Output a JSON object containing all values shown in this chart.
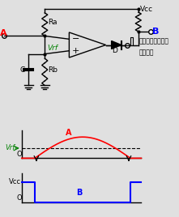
{
  "bg_color": "#e0e0e0",
  "colors": {
    "black": "#000000",
    "red": "#ff0000",
    "blue": "#0000ff",
    "green": "#008000"
  },
  "labels": {
    "A": "A",
    "B": "B",
    "Ra": "Ra",
    "Rb": "Rb",
    "C": "C",
    "D": "D",
    "Vrf": "Vrf",
    "Vcc": "Vcc",
    "send_pulse_1": "送信タイミング゚",
    "send_pulse_2": "パルス"
  }
}
